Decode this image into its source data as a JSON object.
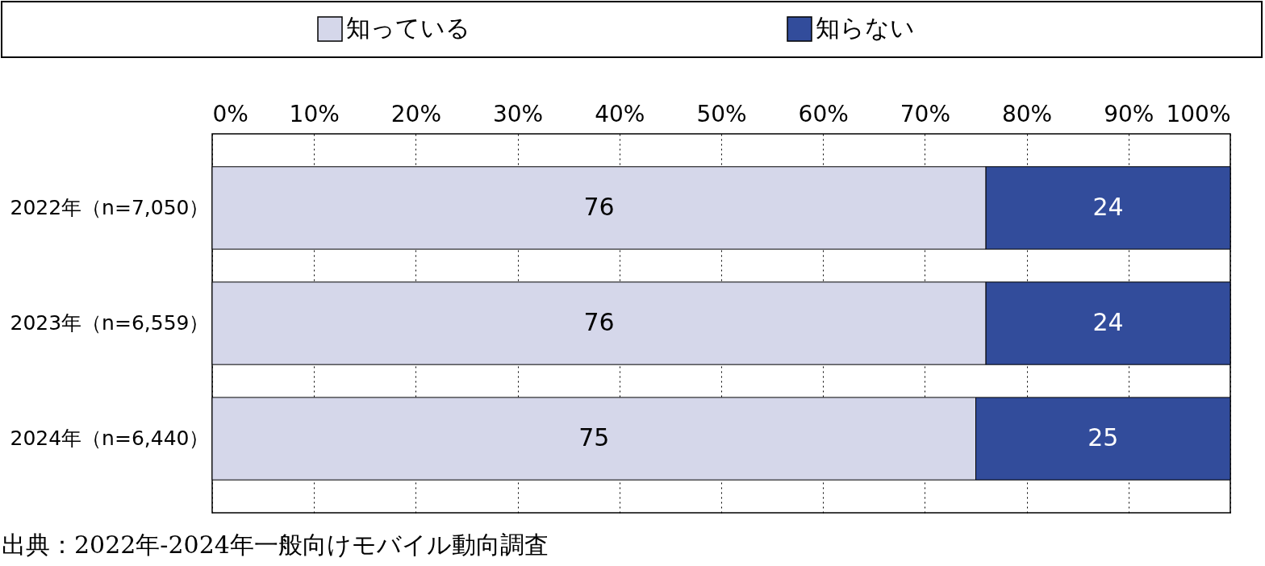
{
  "chart_data": {
    "type": "bar",
    "orientation": "horizontal",
    "stacked": true,
    "categories": [
      "2022年（n=7,050）",
      "2023年（n=6,559）",
      "2024年（n=6,440）"
    ],
    "series": [
      {
        "name": "知っている",
        "color": "#d5d7ea",
        "values": [
          76,
          76,
          75
        ]
      },
      {
        "name": "知らない",
        "color": "#324c9b",
        "values": [
          24,
          24,
          25
        ]
      }
    ],
    "xlim": [
      0,
      100
    ],
    "xticks": [
      {
        "value": 0,
        "label": "0%"
      },
      {
        "value": 10,
        "label": "10%"
      },
      {
        "value": 20,
        "label": "20%"
      },
      {
        "value": 30,
        "label": "30%"
      },
      {
        "value": 40,
        "label": "40%"
      },
      {
        "value": 50,
        "label": "50%"
      },
      {
        "value": 60,
        "label": "60%"
      },
      {
        "value": 70,
        "label": "70%"
      },
      {
        "value": 80,
        "label": "80%"
      },
      {
        "value": 90,
        "label": "90%"
      },
      {
        "value": 100,
        "label": "100%"
      }
    ],
    "grid": "x",
    "legend": "top",
    "data_labels": true,
    "annotations": [
      "出典：2022年-2024年一般向けモバイル動向調査"
    ]
  }
}
